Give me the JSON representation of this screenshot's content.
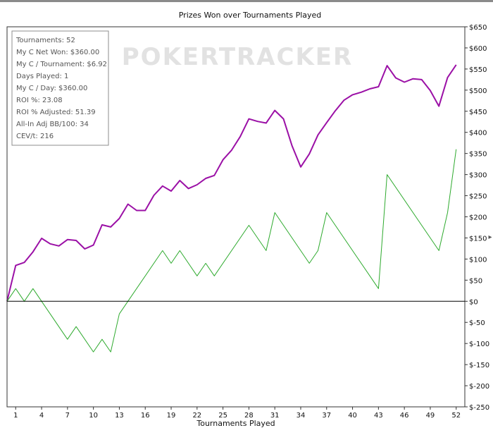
{
  "chart_data": {
    "type": "line",
    "title": "Prizes Won over Tournaments Played",
    "xlabel": "Tournaments Played",
    "ylabel": "",
    "watermark": "POKERTRACKER",
    "xlim": [
      0,
      53
    ],
    "ylim": [
      -250,
      650
    ],
    "x_ticks": [
      1,
      4,
      7,
      10,
      13,
      16,
      19,
      22,
      25,
      28,
      31,
      34,
      37,
      40,
      43,
      46,
      49,
      52
    ],
    "y_ticks": [
      {
        "value": 650,
        "label": "$650"
      },
      {
        "value": 600,
        "label": "$600"
      },
      {
        "value": 550,
        "label": "$550"
      },
      {
        "value": 500,
        "label": "$500"
      },
      {
        "value": 450,
        "label": "$450"
      },
      {
        "value": 400,
        "label": "$400"
      },
      {
        "value": 350,
        "label": "$350"
      },
      {
        "value": 300,
        "label": "$300"
      },
      {
        "value": 250,
        "label": "$250"
      },
      {
        "value": 200,
        "label": "$200"
      },
      {
        "value": 150,
        "label": "$150"
      },
      {
        "value": 100,
        "label": "$100"
      },
      {
        "value": 50,
        "label": "$50"
      },
      {
        "value": 0,
        "label": "$0"
      },
      {
        "value": -50,
        "label": "$-50"
      },
      {
        "value": -100,
        "label": "$-100"
      },
      {
        "value": -150,
        "label": "$-150"
      },
      {
        "value": -200,
        "label": "$-200"
      },
      {
        "value": -250,
        "label": "$-250"
      }
    ],
    "zero_line": 0,
    "series": [
      {
        "color": "#9b10a6",
        "x": [
          0,
          1,
          2,
          3,
          4,
          5,
          6,
          7,
          8,
          9,
          10,
          11,
          12,
          13,
          14,
          15,
          16,
          17,
          18,
          19,
          20,
          21,
          22,
          23,
          24,
          25,
          26,
          27,
          28,
          29,
          30,
          31,
          32,
          33,
          34,
          35,
          36,
          37,
          38,
          39,
          40,
          41,
          42,
          43,
          44,
          45,
          46,
          47,
          48,
          49,
          50,
          51,
          52
        ],
        "values": [
          0,
          85,
          92,
          117,
          149,
          136,
          131,
          146,
          144,
          124,
          133,
          181,
          176,
          196,
          230,
          215,
          215,
          251,
          273,
          261,
          286,
          267,
          276,
          291,
          298,
          335,
          358,
          390,
          432,
          426,
          422,
          452,
          432,
          368,
          318,
          349,
          394,
          423,
          451,
          476,
          489,
          495,
          503,
          508,
          558,
          529,
          519,
          527,
          525,
          499,
          462,
          530,
          560
        ]
      },
      {
        "color": "#2eaa2e",
        "x": [
          0,
          1,
          2,
          3,
          7,
          8,
          10,
          11,
          12,
          13,
          18,
          19,
          20,
          22,
          23,
          24,
          28,
          30,
          31,
          35,
          36,
          37,
          43,
          44,
          50,
          51,
          52
        ],
        "values": [
          0,
          30,
          0,
          30,
          -90,
          -60,
          -120,
          -90,
          -120,
          -30,
          120,
          90,
          120,
          60,
          90,
          60,
          180,
          120,
          210,
          90,
          120,
          210,
          30,
          300,
          120,
          210,
          360
        ]
      }
    ]
  },
  "stats_box": {
    "lines": [
      "Tournaments: 52",
      "My C Net Won: $360.00",
      "My C / Tournament: $6.92",
      "Days Played: 1",
      "My C / Day: $360.00",
      "ROI %: 23.08",
      "ROI % Adjusted: 51.39",
      "All-In Adj BB/100: 34",
      "CEV/t: 216"
    ]
  }
}
